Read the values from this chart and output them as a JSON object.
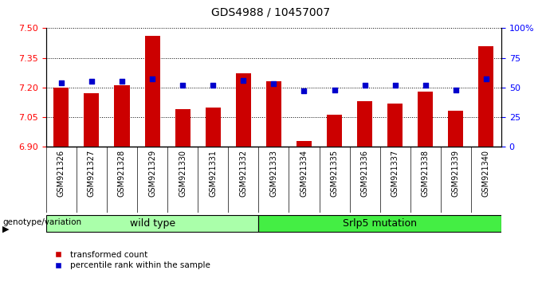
{
  "title": "GDS4988 / 10457007",
  "samples": [
    "GSM921326",
    "GSM921327",
    "GSM921328",
    "GSM921329",
    "GSM921330",
    "GSM921331",
    "GSM921332",
    "GSM921333",
    "GSM921334",
    "GSM921335",
    "GSM921336",
    "GSM921337",
    "GSM921338",
    "GSM921339",
    "GSM921340"
  ],
  "transformed_count": [
    7.2,
    7.17,
    7.21,
    7.46,
    7.09,
    7.1,
    7.27,
    7.23,
    6.93,
    7.06,
    7.13,
    7.12,
    7.18,
    7.08,
    7.41
  ],
  "percentile_rank": [
    54,
    55,
    55,
    57,
    52,
    52,
    56,
    53,
    47,
    48,
    52,
    52,
    52,
    48,
    57
  ],
  "group_labels": [
    "wild type",
    "Srlp5 mutation"
  ],
  "wt_count": 7,
  "mut_count": 8,
  "group_color_wt": "#aaffaa",
  "group_color_mut": "#44ee44",
  "ylim": [
    6.9,
    7.5
  ],
  "yticks": [
    6.9,
    7.05,
    7.2,
    7.35,
    7.5
  ],
  "y_right_ticks": [
    0,
    25,
    50,
    75,
    100
  ],
  "bar_color": "#cc0000",
  "dot_color": "#0000cc",
  "bar_bottom": 6.9,
  "legend_label_bar": "transformed count",
  "legend_label_dot": "percentile rank within the sample",
  "genotype_label": "genotype/variation",
  "background_plot": "#ffffff",
  "xtick_bg": "#d0d0d0"
}
